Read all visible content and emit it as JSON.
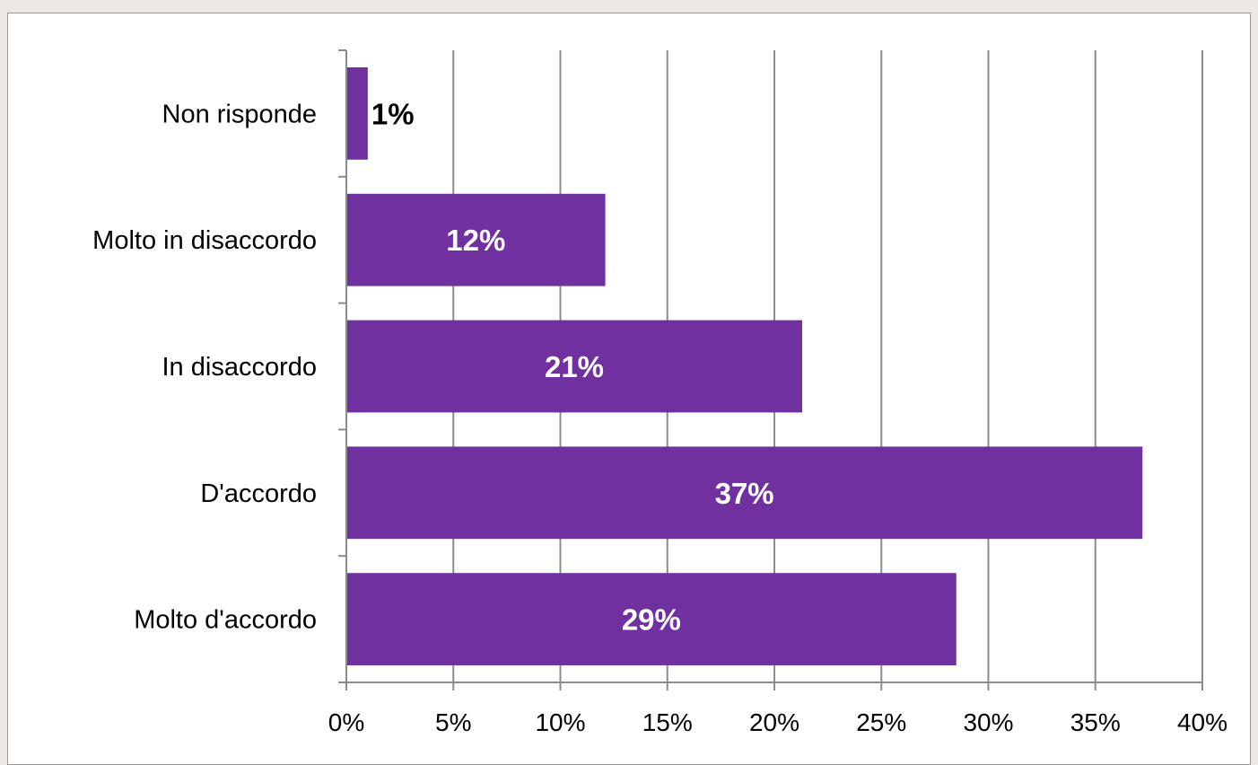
{
  "chart_data": {
    "type": "bar",
    "orientation": "horizontal",
    "title": "",
    "xlabel": "",
    "ylabel": "",
    "categories": [
      "Molto d'accordo",
      "D'accordo",
      "In disaccordo",
      "Molto in disaccordo",
      "Non risponde"
    ],
    "values": [
      28.5,
      37.2,
      21.3,
      12.1,
      1.0
    ],
    "data_labels": [
      "29%",
      "37%",
      "21%",
      "12%",
      "1%"
    ],
    "x_ticks": [
      "0%",
      "5%",
      "10%",
      "15%",
      "20%",
      "25%",
      "30%",
      "35%",
      "40%"
    ],
    "xlim": [
      0,
      40
    ],
    "grid": "vertical",
    "legend": "none",
    "bar_color": "#7030a0",
    "label_color_inside": "#ffffff",
    "label_color_outside": "#000000"
  }
}
